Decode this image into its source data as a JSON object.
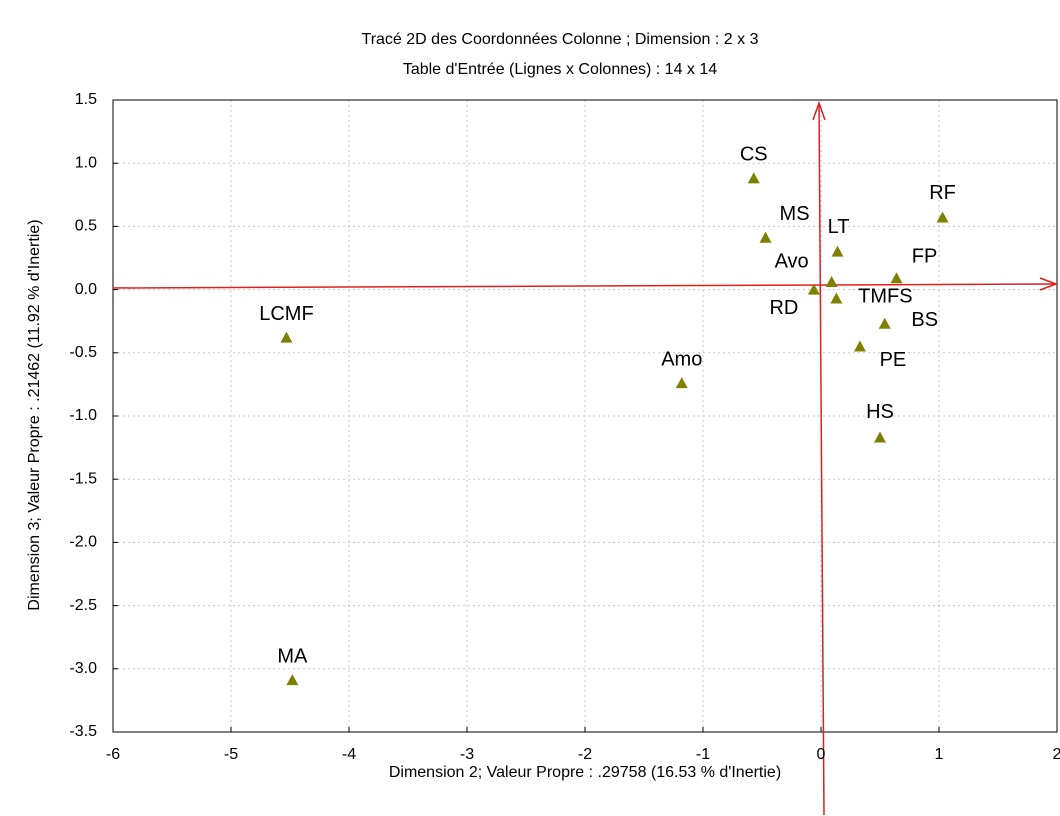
{
  "chart_data": {
    "type": "scatter",
    "title": "Tracé 2D des Coordonnées Colonne ; Dimension :  2 x  3",
    "subtitle": "Table d'Entrée (Lignes x Colonnes) : 14 x 14",
    "x_label": "Dimension 2; Valeur Propre : .29758 (16.53  % d'Inertie)",
    "y_label": "Dimension 3; Valeur Propre : .21462 (11.92  % d'Inertie)",
    "xlim": [
      -6,
      2
    ],
    "ylim": [
      -3.5,
      1.5
    ],
    "xticks": [
      -6,
      -5,
      -4,
      -3,
      -2,
      -1,
      0,
      1,
      2
    ],
    "yticks": [
      1.5,
      {
        "value": 1.0,
        "label": "1.0"
      },
      0.5,
      {
        "value": 0.0,
        "label": "0.0"
      },
      -0.5,
      {
        "value": -1.0,
        "label": "-1.0"
      },
      -1.5,
      {
        "value": -2.0,
        "label": "-2.0"
      },
      -2.5,
      {
        "value": -3.0,
        "label": "-3.0"
      },
      -3.5
    ],
    "grid": true,
    "color": "#808000",
    "labels": [
      "CS",
      "MS",
      "LT",
      "RF",
      "FP",
      "Avo",
      "RD",
      "TMFS",
      "BS",
      "PE",
      "HS",
      "Amo",
      "LCMF",
      "MA"
    ],
    "x": [
      -0.57,
      -0.47,
      0.14,
      1.03,
      0.64,
      0.09,
      -0.06,
      0.13,
      0.54,
      0.33,
      0.5,
      -1.18,
      -4.53,
      -4.48
    ],
    "values": [
      0.88,
      0.41,
      0.3,
      0.57,
      0.09,
      0.06,
      0.0,
      -0.07,
      -0.27,
      -0.45,
      -1.17,
      -0.74,
      -0.38,
      -3.09
    ]
  }
}
